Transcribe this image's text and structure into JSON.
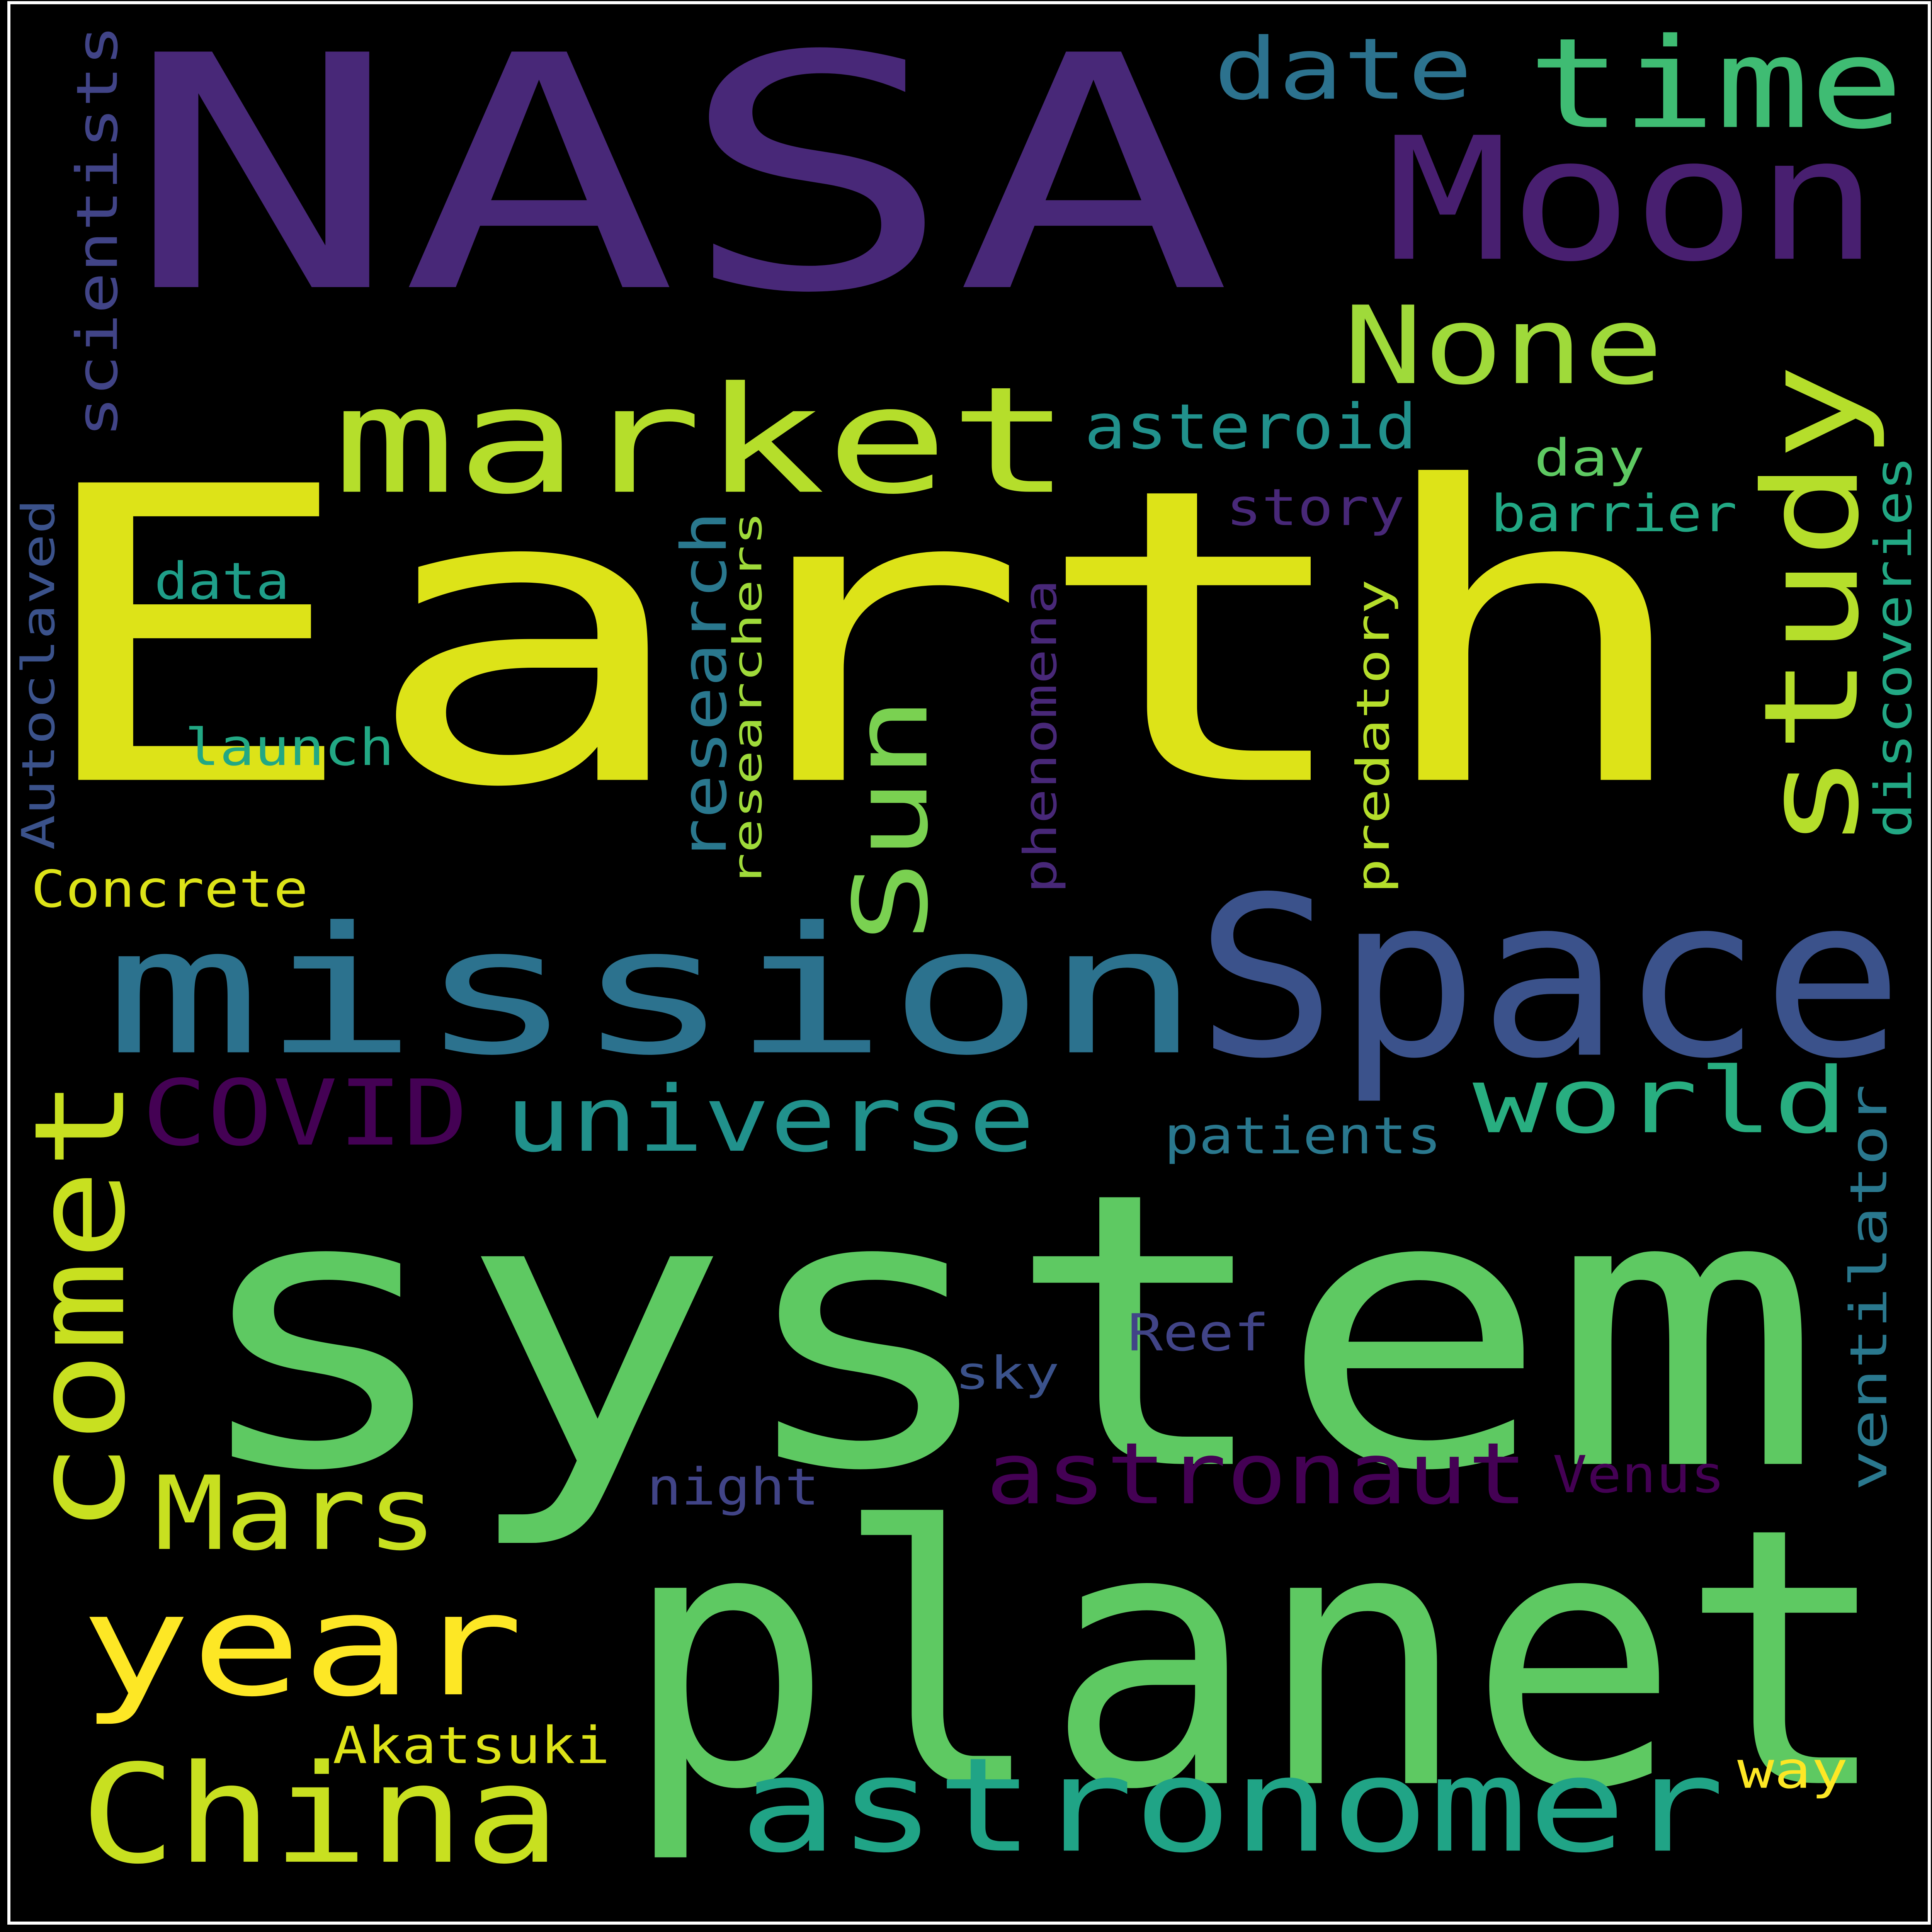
{
  "cloud": {
    "background": "#000000",
    "words": [
      {
        "text": "Earth",
        "color": "#dde318",
        "rotated": false,
        "name": "word-earth"
      },
      {
        "text": "system",
        "color": "#5ec962",
        "rotated": false,
        "name": "word-system"
      },
      {
        "text": "NASA",
        "color": "#482878",
        "rotated": false,
        "name": "word-nasa"
      },
      {
        "text": "planet",
        "color": "#5ec962",
        "rotated": false,
        "name": "word-planet"
      },
      {
        "text": "Space",
        "color": "#3b528b",
        "rotated": false,
        "name": "word-space"
      },
      {
        "text": "mission",
        "color": "#2c728e",
        "rotated": false,
        "name": "word-mission"
      },
      {
        "text": "Moon",
        "color": "#481f70",
        "rotated": false,
        "name": "word-moon"
      },
      {
        "text": "market",
        "color": "#b5de2b",
        "rotated": false,
        "name": "word-market"
      },
      {
        "text": "time",
        "color": "#3fbc73",
        "rotated": false,
        "name": "word-time"
      },
      {
        "text": "year",
        "color": "#fde725",
        "rotated": false,
        "name": "word-year"
      },
      {
        "text": "comet",
        "color": "#c8e020",
        "rotated": true,
        "name": "word-comet"
      },
      {
        "text": "astronomer",
        "color": "#20a486",
        "rotated": false,
        "name": "word-astronomer"
      },
      {
        "text": "China",
        "color": "#c8e020",
        "rotated": false,
        "name": "word-china"
      },
      {
        "text": "study",
        "color": "#b5de2b",
        "rotated": true,
        "name": "word-study"
      },
      {
        "text": "None",
        "color": "#9fda3a",
        "rotated": false,
        "name": "word-none"
      },
      {
        "text": "world",
        "color": "#28ae80",
        "rotated": false,
        "name": "word-world"
      },
      {
        "text": "Mars",
        "color": "#c8e020",
        "rotated": false,
        "name": "word-mars"
      },
      {
        "text": "universe",
        "color": "#21918c",
        "rotated": false,
        "name": "word-universe"
      },
      {
        "text": "astronaut",
        "color": "#440154",
        "rotated": false,
        "name": "word-astronaut"
      },
      {
        "text": "Sun",
        "color": "#7ad151",
        "rotated": true,
        "name": "word-sun"
      },
      {
        "text": "date",
        "color": "#2c728e",
        "rotated": false,
        "name": "word-date"
      },
      {
        "text": "COVID",
        "color": "#440154",
        "rotated": false,
        "name": "word-covid"
      },
      {
        "text": "research",
        "color": "#2a788e",
        "rotated": true,
        "name": "word-research"
      },
      {
        "text": "asteroid",
        "color": "#21918c",
        "rotated": false,
        "name": "word-asteroid"
      },
      {
        "text": "scientists",
        "color": "#414487",
        "rotated": true,
        "name": "word-scientists"
      },
      {
        "text": "discoveries",
        "color": "#22a884",
        "rotated": true,
        "name": "word-discoveries"
      },
      {
        "text": "ventilator",
        "color": "#2a788e",
        "rotated": true,
        "name": "word-ventilator"
      },
      {
        "text": "researchers",
        "color": "#9fda3a",
        "rotated": true,
        "name": "word-researchers"
      },
      {
        "text": "phenomena",
        "color": "#482878",
        "rotated": true,
        "name": "word-phenomena"
      },
      {
        "text": "predatory",
        "color": "#b5de2b",
        "rotated": true,
        "name": "word-predatory"
      },
      {
        "text": "Autoclaved",
        "color": "#3b528b",
        "rotated": true,
        "name": "word-autoclaved"
      },
      {
        "text": "barrier",
        "color": "#22a884",
        "rotated": false,
        "name": "word-barrier"
      },
      {
        "text": "launch",
        "color": "#22a884",
        "rotated": false,
        "name": "word-launch"
      },
      {
        "text": "Akatsuki",
        "color": "#dde318",
        "rotated": false,
        "name": "word-akatsuki"
      },
      {
        "text": "patients",
        "color": "#2a788e",
        "rotated": false,
        "name": "word-patients"
      },
      {
        "text": "data",
        "color": "#1f9e89",
        "rotated": false,
        "name": "word-data"
      },
      {
        "text": "Concrete",
        "color": "#dde318",
        "rotated": false,
        "name": "word-concrete"
      },
      {
        "text": "story",
        "color": "#482878",
        "rotated": false,
        "name": "word-story"
      },
      {
        "text": "day",
        "color": "#5ec962",
        "rotated": false,
        "name": "word-day"
      },
      {
        "text": "Reef",
        "color": "#414487",
        "rotated": false,
        "name": "word-reef"
      },
      {
        "text": "night",
        "color": "#414487",
        "rotated": false,
        "name": "word-night"
      },
      {
        "text": "Venus",
        "color": "#440154",
        "rotated": false,
        "name": "word-venus"
      },
      {
        "text": "sky",
        "color": "#3b528b",
        "rotated": false,
        "name": "word-sky"
      },
      {
        "text": "way",
        "color": "#fde725",
        "rotated": false,
        "name": "word-way"
      }
    ]
  }
}
